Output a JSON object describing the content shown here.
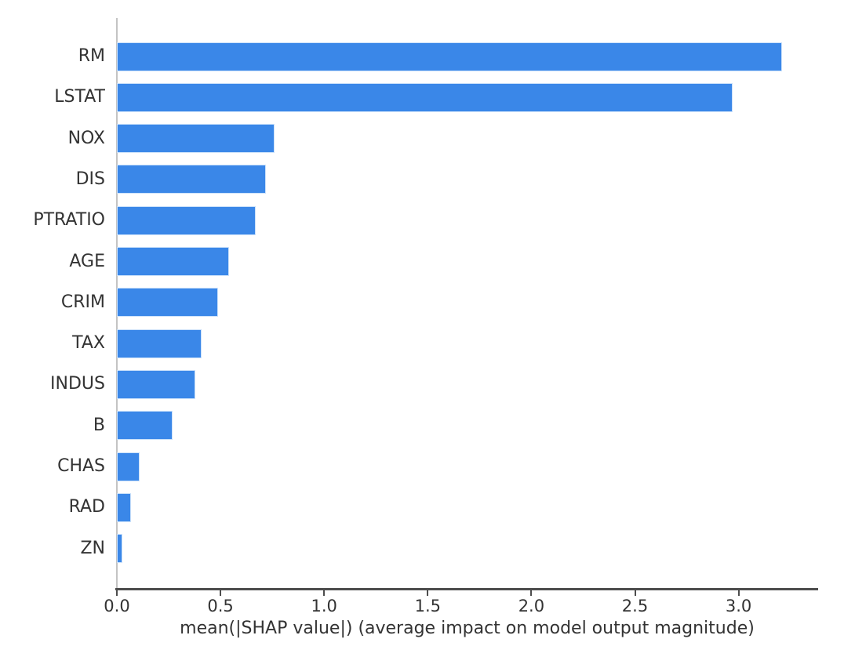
{
  "chart_data": {
    "type": "bar",
    "orientation": "horizontal",
    "title": "",
    "categories": [
      "RM",
      "LSTAT",
      "NOX",
      "DIS",
      "PTRATIO",
      "AGE",
      "CRIM",
      "TAX",
      "INDUS",
      "B",
      "CHAS",
      "RAD",
      "ZN"
    ],
    "values": [
      3.21,
      2.97,
      0.76,
      0.72,
      0.67,
      0.54,
      0.49,
      0.41,
      0.38,
      0.27,
      0.11,
      0.07,
      0.025
    ],
    "xlabel": "mean(|SHAP value|) (average impact on model output magnitude)",
    "xlim": [
      0,
      3.38
    ],
    "xticks": [
      {
        "value": 0.0,
        "label": "0.0"
      },
      {
        "value": 0.5,
        "label": "0.5"
      },
      {
        "value": 1.0,
        "label": "1.0"
      },
      {
        "value": 1.5,
        "label": "1.5"
      },
      {
        "value": 2.0,
        "label": "2.0"
      },
      {
        "value": 2.5,
        "label": "2.5"
      },
      {
        "value": 3.0,
        "label": "3.0"
      }
    ],
    "grid": false,
    "legend": false,
    "colors": {
      "bar": "#3a87e8",
      "axis_line": "#4d4d4d",
      "left_spine": "#c4c4c4",
      "text": "#333333",
      "background": "#ffffff"
    }
  }
}
